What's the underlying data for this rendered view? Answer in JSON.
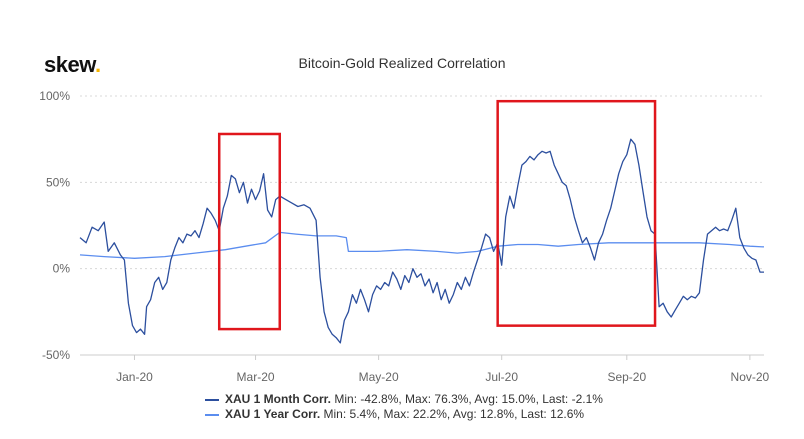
{
  "logo": {
    "text": "skew",
    "dot": "."
  },
  "chart_data": {
    "type": "line",
    "title": "Bitcoin-Gold Realized Correlation",
    "xlabel": "",
    "ylabel": "",
    "x_ticks": [
      "Jan-20",
      "Mar-20",
      "May-20",
      "Jul-20",
      "Sep-20",
      "Nov-20"
    ],
    "y_ticks": [
      "100%",
      "50%",
      "0%",
      "-50%"
    ],
    "ylim": [
      -50,
      100
    ],
    "x_range_days": [
      -27,
      312
    ],
    "highlight_boxes": [
      {
        "x_range_days": [
          42,
          72
        ],
        "y_range": [
          -35,
          78
        ]
      },
      {
        "x_range_days": [
          180,
          258
        ],
        "y_range": [
          -33,
          97
        ]
      }
    ],
    "series": [
      {
        "name": "XAU 1 Month Corr.",
        "stats": "Min: -42.8%, Max: 76.3%, Avg: 15.0%, Last: -2.1%",
        "color": "#2c4f9e",
        "points": [
          [
            -27,
            18
          ],
          [
            -24,
            15
          ],
          [
            -21,
            24
          ],
          [
            -18,
            22
          ],
          [
            -15,
            27
          ],
          [
            -13,
            10
          ],
          [
            -10,
            15
          ],
          [
            -7,
            8
          ],
          [
            -5,
            5
          ],
          [
            -3,
            -20
          ],
          [
            -1,
            -33
          ],
          [
            1,
            -37
          ],
          [
            3,
            -35
          ],
          [
            5,
            -38
          ],
          [
            6,
            -22
          ],
          [
            8,
            -18
          ],
          [
            10,
            -8
          ],
          [
            12,
            -5
          ],
          [
            14,
            -12
          ],
          [
            16,
            -8
          ],
          [
            18,
            5
          ],
          [
            20,
            12
          ],
          [
            22,
            18
          ],
          [
            24,
            15
          ],
          [
            26,
            20
          ],
          [
            28,
            19
          ],
          [
            30,
            22
          ],
          [
            32,
            18
          ],
          [
            34,
            26
          ],
          [
            36,
            35
          ],
          [
            38,
            32
          ],
          [
            40,
            28
          ],
          [
            42,
            22
          ],
          [
            44,
            35
          ],
          [
            46,
            42
          ],
          [
            48,
            54
          ],
          [
            50,
            52
          ],
          [
            52,
            44
          ],
          [
            54,
            50
          ],
          [
            56,
            38
          ],
          [
            58,
            46
          ],
          [
            60,
            40
          ],
          [
            62,
            45
          ],
          [
            64,
            55
          ],
          [
            66,
            34
          ],
          [
            68,
            30
          ],
          [
            70,
            40
          ],
          [
            72,
            42
          ],
          [
            75,
            40
          ],
          [
            78,
            38
          ],
          [
            81,
            36
          ],
          [
            84,
            37
          ],
          [
            87,
            35
          ],
          [
            90,
            28
          ],
          [
            92,
            -5
          ],
          [
            94,
            -25
          ],
          [
            96,
            -34
          ],
          [
            98,
            -38
          ],
          [
            100,
            -40
          ],
          [
            102,
            -43
          ],
          [
            104,
            -30
          ],
          [
            106,
            -25
          ],
          [
            108,
            -15
          ],
          [
            110,
            -20
          ],
          [
            112,
            -12
          ],
          [
            114,
            -18
          ],
          [
            116,
            -25
          ],
          [
            118,
            -15
          ],
          [
            120,
            -10
          ],
          [
            122,
            -12
          ],
          [
            124,
            -8
          ],
          [
            126,
            -10
          ],
          [
            128,
            -2
          ],
          [
            130,
            -6
          ],
          [
            132,
            -12
          ],
          [
            134,
            -4
          ],
          [
            136,
            -8
          ],
          [
            138,
            0
          ],
          [
            140,
            -5
          ],
          [
            142,
            -3
          ],
          [
            144,
            -10
          ],
          [
            146,
            -6
          ],
          [
            148,
            -14
          ],
          [
            150,
            -8
          ],
          [
            152,
            -18
          ],
          [
            154,
            -12
          ],
          [
            156,
            -20
          ],
          [
            158,
            -15
          ],
          [
            160,
            -8
          ],
          [
            162,
            -12
          ],
          [
            164,
            -5
          ],
          [
            166,
            -10
          ],
          [
            168,
            -2
          ],
          [
            170,
            5
          ],
          [
            172,
            12
          ],
          [
            174,
            20
          ],
          [
            176,
            18
          ],
          [
            178,
            10
          ],
          [
            180,
            15
          ],
          [
            182,
            2
          ],
          [
            184,
            30
          ],
          [
            186,
            42
          ],
          [
            188,
            35
          ],
          [
            190,
            48
          ],
          [
            192,
            60
          ],
          [
            194,
            62
          ],
          [
            196,
            65
          ],
          [
            198,
            63
          ],
          [
            200,
            66
          ],
          [
            202,
            68
          ],
          [
            204,
            67
          ],
          [
            206,
            68
          ],
          [
            208,
            60
          ],
          [
            210,
            55
          ],
          [
            212,
            50
          ],
          [
            214,
            48
          ],
          [
            216,
            40
          ],
          [
            218,
            30
          ],
          [
            220,
            22
          ],
          [
            222,
            15
          ],
          [
            224,
            18
          ],
          [
            226,
            12
          ],
          [
            228,
            5
          ],
          [
            230,
            15
          ],
          [
            232,
            20
          ],
          [
            234,
            28
          ],
          [
            236,
            35
          ],
          [
            238,
            45
          ],
          [
            240,
            55
          ],
          [
            242,
            62
          ],
          [
            244,
            66
          ],
          [
            246,
            75
          ],
          [
            248,
            72
          ],
          [
            250,
            60
          ],
          [
            252,
            45
          ],
          [
            254,
            30
          ],
          [
            256,
            22
          ],
          [
            258,
            20
          ],
          [
            260,
            -22
          ],
          [
            262,
            -20
          ],
          [
            264,
            -25
          ],
          [
            266,
            -28
          ],
          [
            268,
            -24
          ],
          [
            270,
            -20
          ],
          [
            272,
            -16
          ],
          [
            274,
            -18
          ],
          [
            276,
            -16
          ],
          [
            278,
            -17
          ],
          [
            280,
            -14
          ],
          [
            282,
            5
          ],
          [
            284,
            20
          ],
          [
            286,
            22
          ],
          [
            288,
            24
          ],
          [
            290,
            22
          ],
          [
            292,
            23
          ],
          [
            294,
            22
          ],
          [
            296,
            28
          ],
          [
            298,
            35
          ],
          [
            300,
            18
          ],
          [
            302,
            12
          ],
          [
            304,
            8
          ],
          [
            306,
            6
          ],
          [
            308,
            5
          ],
          [
            310,
            -2
          ],
          [
            312,
            -2
          ]
        ]
      },
      {
        "name": "XAU 1 Year Corr.",
        "stats": "Min: 5.4%, Max: 22.2%, Avg: 12.8%, Last: 12.6%",
        "color": "#5b8def",
        "points": [
          [
            -27,
            8
          ],
          [
            -15,
            7
          ],
          [
            0,
            6
          ],
          [
            15,
            7
          ],
          [
            30,
            9
          ],
          [
            45,
            11
          ],
          [
            55,
            13
          ],
          [
            65,
            15
          ],
          [
            72,
            21
          ],
          [
            80,
            20
          ],
          [
            90,
            19
          ],
          [
            100,
            19
          ],
          [
            105,
            18
          ],
          [
            106,
            10
          ],
          [
            120,
            10
          ],
          [
            135,
            11
          ],
          [
            150,
            10
          ],
          [
            160,
            9
          ],
          [
            170,
            10
          ],
          [
            180,
            13
          ],
          [
            190,
            14
          ],
          [
            200,
            14
          ],
          [
            210,
            13
          ],
          [
            220,
            14
          ],
          [
            235,
            15
          ],
          [
            250,
            15
          ],
          [
            265,
            15
          ],
          [
            280,
            15
          ],
          [
            295,
            14
          ],
          [
            305,
            13
          ],
          [
            312,
            12.6
          ]
        ]
      }
    ]
  }
}
